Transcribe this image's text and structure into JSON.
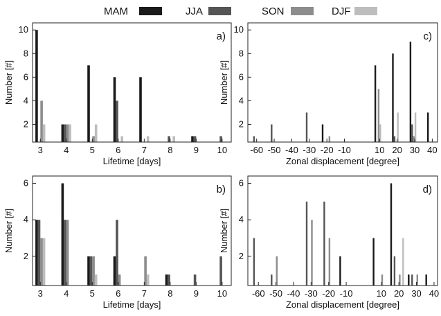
{
  "legend": {
    "items": [
      {
        "label": "MAM",
        "color": "#1a1a1a"
      },
      {
        "label": "JJA",
        "color": "#555555"
      },
      {
        "label": "SON",
        "color": "#8c8c8c"
      },
      {
        "label": "DJF",
        "color": "#bdbdbd"
      }
    ]
  },
  "chart_data": [
    {
      "type": "bar",
      "panel": "a)",
      "xlabel": "Lifetime [days]",
      "ylabel": "Number [#]",
      "ylim": [
        0.5,
        10.6
      ],
      "yticks": [
        2,
        4,
        6,
        8,
        10
      ],
      "xticks": [
        3,
        4,
        5,
        6,
        7,
        8,
        9,
        10
      ],
      "xlim": [
        2.7,
        10.35
      ],
      "bar_width": 0.095,
      "series": [
        {
          "name": "MAM",
          "x": [
            3,
            4,
            5,
            6,
            7,
            8,
            9
          ],
          "values": [
            10,
            2,
            7,
            6,
            6,
            0,
            1
          ]
        },
        {
          "name": "JJA",
          "x": [
            3,
            4,
            5,
            6,
            7,
            8,
            9,
            10
          ],
          "values": [
            0,
            2,
            0,
            4,
            0,
            1,
            1,
            1
          ]
        },
        {
          "name": "SON",
          "x": [
            3,
            4,
            5,
            6,
            7,
            8,
            9,
            10
          ],
          "values": [
            4,
            2,
            1,
            0,
            0,
            0,
            0,
            0
          ]
        },
        {
          "name": "DJF",
          "x": [
            3,
            4,
            5,
            6,
            7,
            8,
            9,
            10
          ],
          "values": [
            2,
            2,
            2,
            1,
            1,
            1,
            0,
            0
          ]
        }
      ]
    },
    {
      "type": "bar",
      "panel": "b)",
      "xlabel": "Lifetime [days]",
      "ylabel": "Number [#]",
      "ylim": [
        0.4,
        6.4
      ],
      "yticks": [
        2,
        4,
        6
      ],
      "xticks": [
        3,
        4,
        5,
        6,
        7,
        8,
        9,
        10
      ],
      "xlim": [
        2.7,
        10.35
      ],
      "bar_width": 0.095,
      "series": [
        {
          "name": "MAM",
          "x": [
            3,
            4,
            5,
            6,
            7,
            8,
            9,
            10
          ],
          "values": [
            4,
            6,
            2,
            2,
            0,
            1,
            0,
            0
          ]
        },
        {
          "name": "JJA",
          "x": [
            3,
            4,
            5,
            6,
            7,
            8,
            9,
            10
          ],
          "values": [
            4,
            4,
            2,
            4,
            0,
            1,
            1,
            2
          ]
        },
        {
          "name": "SON",
          "x": [
            3,
            4,
            5,
            6,
            7,
            8,
            9,
            10
          ],
          "values": [
            3,
            4,
            2,
            1,
            2,
            0,
            0,
            0
          ]
        },
        {
          "name": "DJF",
          "x": [
            3,
            4,
            5,
            6,
            7,
            8,
            9,
            10
          ],
          "values": [
            3,
            0,
            1,
            0,
            1,
            0,
            0,
            0
          ]
        }
      ]
    },
    {
      "type": "bar",
      "panel": "c)",
      "xlabel": "Zonal displacement [degree]",
      "ylabel": "Number [#]",
      "ylim": [
        0.5,
        10.6
      ],
      "yticks": [
        2,
        4,
        6,
        8,
        10
      ],
      "xticks": [
        -60,
        -50,
        -40,
        -30,
        -20,
        -10,
        10,
        20,
        30,
        40
      ],
      "xlim": [
        -65,
        43
      ],
      "bar_width": 0.95,
      "series": [
        {
          "name": "MAM",
          "x": [
            -61,
            -51,
            -31,
            -21,
            9,
            19,
            29,
            39
          ],
          "values": [
            0,
            0,
            0,
            2,
            7,
            8,
            9,
            3
          ]
        },
        {
          "name": "JJA",
          "x": [
            -61,
            -51,
            -31,
            -21,
            9,
            19,
            29,
            39
          ],
          "values": [
            1,
            2,
            3,
            0,
            0,
            1,
            2,
            0
          ]
        },
        {
          "name": "SON",
          "x": [
            -19,
            9,
            19,
            29,
            39
          ],
          "values": [
            1,
            5,
            0,
            1,
            0
          ]
        },
        {
          "name": "DJF",
          "x": [
            9,
            19,
            29,
            39
          ],
          "values": [
            2,
            3,
            3,
            0
          ]
        }
      ]
    },
    {
      "type": "bar",
      "panel": "d)",
      "xlabel": "Zonal displacement [degree]",
      "ylabel": "Number [#]",
      "ylim": [
        0.4,
        6.4
      ],
      "yticks": [
        2,
        4,
        6
      ],
      "xticks": [
        -60,
        -50,
        -40,
        -30,
        -20,
        -10,
        10,
        20,
        30,
        40
      ],
      "xlim": [
        -66,
        42
      ],
      "bar_width": 0.95,
      "series": [
        {
          "name": "MAM",
          "x": [
            -12,
            7,
            17,
            27,
            37
          ],
          "values": [
            2,
            3,
            6,
            1,
            1
          ]
        },
        {
          "name": "JJA",
          "x": [
            -62,
            -52,
            -32,
            -22,
            18,
            28
          ],
          "values": [
            3,
            1,
            5,
            5,
            2,
            1
          ]
        },
        {
          "name": "SON",
          "x": [
            -50,
            -30,
            -20,
            10,
            20,
            30
          ],
          "values": [
            2,
            4,
            3,
            1,
            1,
            1
          ]
        },
        {
          "name": "DJF",
          "x": [
            21
          ],
          "values": [
            3
          ]
        }
      ]
    }
  ]
}
